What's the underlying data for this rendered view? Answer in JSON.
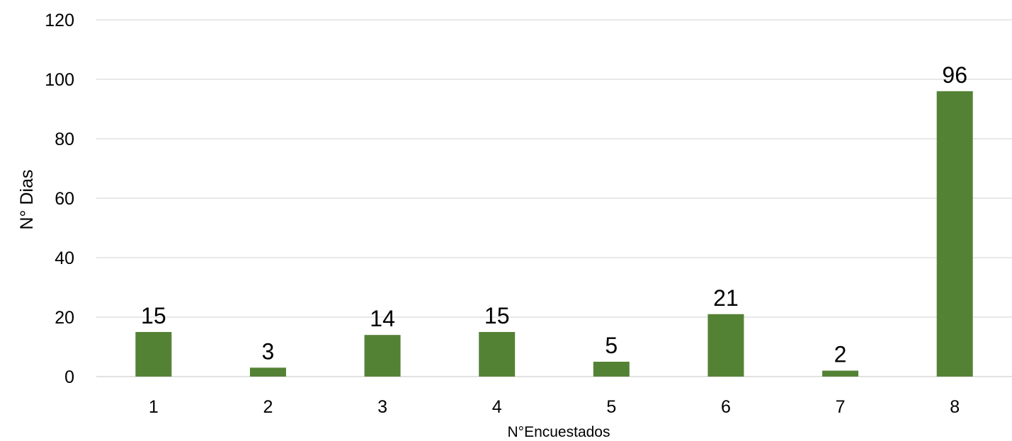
{
  "chart_data": {
    "type": "bar",
    "categories": [
      "1",
      "2",
      "3",
      "4",
      "5",
      "6",
      "7",
      "8"
    ],
    "values": [
      15,
      3,
      14,
      15,
      5,
      21,
      2,
      96
    ],
    "data_labels": [
      "15",
      "3",
      "14",
      "15",
      "5",
      "21",
      "2",
      "96"
    ],
    "title": "",
    "xlabel": "N°Encuestados",
    "ylabel": "N° Dias",
    "ylim": [
      0,
      120
    ],
    "yticks": [
      0,
      20,
      40,
      60,
      80,
      100,
      120
    ],
    "ytick_labels": [
      "0",
      "20",
      "40",
      "60",
      "80",
      "100",
      "120"
    ],
    "grid": true,
    "legend": "none",
    "bar_color": "#548235"
  }
}
